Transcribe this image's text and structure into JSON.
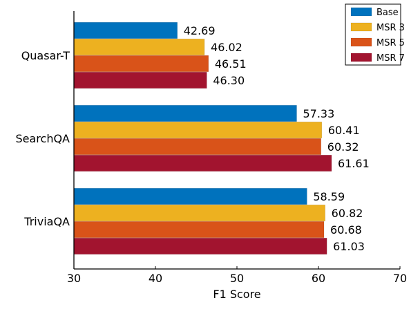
{
  "chart_data": {
    "type": "bar",
    "orientation": "horizontal",
    "title": "",
    "xlabel": "F1 Score",
    "ylabel": "",
    "xlim": [
      30,
      70
    ],
    "xticks": [
      "30",
      "40",
      "50",
      "60",
      "70"
    ],
    "categories": [
      "Quasar-T",
      "SearchQA",
      "TriviaQA"
    ],
    "series": [
      {
        "name": "Base",
        "color": "#0072BD",
        "values": [
          42.69,
          57.33,
          58.59
        ],
        "labels": [
          "42.69",
          "57.33",
          "58.59"
        ]
      },
      {
        "name": "MSR 3",
        "color": "#EDB120",
        "values": [
          46.02,
          60.41,
          60.82
        ],
        "labels": [
          "46.02",
          "60.41",
          "60.82"
        ]
      },
      {
        "name": "MSR 5",
        "color": "#D95319",
        "values": [
          46.51,
          60.32,
          60.68
        ],
        "labels": [
          "46.51",
          "60.32",
          "60.68"
        ]
      },
      {
        "name": "MSR 7",
        "color": "#A2142F",
        "values": [
          46.3,
          61.61,
          61.03
        ],
        "labels": [
          "46.30",
          "61.61",
          "61.03"
        ]
      }
    ],
    "grid": false,
    "legend_position": "top-right"
  }
}
